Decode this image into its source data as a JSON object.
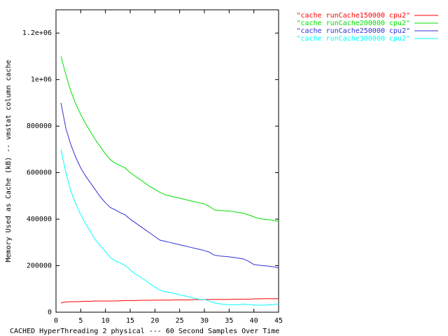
{
  "chart_data": {
    "type": "line",
    "ylabel": "Memory Used as Cache (kB) -- vmstat column cache",
    "xlabel": "CACHED HyperThreading 2 physical --- 60 Second Samples Over Time",
    "x": [
      1,
      2,
      3,
      4,
      5,
      6,
      7,
      8,
      9,
      10,
      11,
      12,
      13,
      14,
      15,
      16,
      17,
      18,
      19,
      20,
      21,
      22,
      23,
      24,
      25,
      26,
      27,
      28,
      29,
      30,
      31,
      32,
      33,
      34,
      35,
      36,
      37,
      38,
      39,
      40,
      41,
      42,
      43,
      44,
      45
    ],
    "series": [
      {
        "name": "\"cache runCache150000 cpu2\"",
        "color": "#ff0000",
        "values": [
          40000,
          44000,
          45000,
          45000,
          46000,
          47000,
          47000,
          48000,
          48000,
          48000,
          48000,
          48000,
          49000,
          50000,
          50000,
          50000,
          51000,
          51000,
          51000,
          52000,
          52000,
          52000,
          52000,
          53000,
          53000,
          53000,
          53000,
          54000,
          54000,
          54000,
          55000,
          55000,
          55000,
          55000,
          55000,
          56000,
          56000,
          56000,
          56000,
          57000,
          57000,
          58000,
          58000,
          58000,
          58000
        ]
      },
      {
        "name": "\"cache runCache200000 cpu2\"",
        "color": "#00e000",
        "values": [
          1100000,
          1020000,
          950000,
          895000,
          850000,
          810000,
          775000,
          740000,
          710000,
          680000,
          655000,
          640000,
          630000,
          620000,
          600000,
          585000,
          570000,
          555000,
          540000,
          528000,
          515000,
          505000,
          500000,
          495000,
          490000,
          485000,
          480000,
          475000,
          470000,
          465000,
          455000,
          440000,
          438000,
          436000,
          435000,
          432000,
          428000,
          425000,
          418000,
          410000,
          403000,
          400000,
          398000,
          395000,
          390000
        ]
      },
      {
        "name": "\"cache runCache250000 cpu2\"",
        "color": "#3030d8",
        "values": [
          900000,
          790000,
          720000,
          665000,
          620000,
          585000,
          555000,
          525000,
          495000,
          470000,
          450000,
          440000,
          428000,
          418000,
          400000,
          385000,
          370000,
          355000,
          340000,
          325000,
          310000,
          305000,
          300000,
          295000,
          290000,
          285000,
          280000,
          275000,
          270000,
          265000,
          258000,
          245000,
          242000,
          240000,
          238000,
          235000,
          232000,
          228000,
          218000,
          205000,
          202000,
          200000,
          198000,
          195000,
          190000
        ]
      },
      {
        "name": "\"cache runCache300000 cpu2\"",
        "color": "#00ffff",
        "values": [
          700000,
          600000,
          520000,
          465000,
          420000,
          380000,
          345000,
          310000,
          285000,
          260000,
          235000,
          220000,
          212000,
          200000,
          182000,
          165000,
          152000,
          138000,
          122000,
          108000,
          95000,
          88000,
          85000,
          80000,
          75000,
          70000,
          65000,
          60000,
          55000,
          55000,
          48000,
          40000,
          36000,
          34000,
          32000,
          32000,
          32000,
          35000,
          33000,
          30000,
          30000,
          30000,
          32000,
          33000,
          35000
        ]
      }
    ],
    "xlim": [
      0,
      45
    ],
    "xticks": [
      0,
      5,
      10,
      15,
      20,
      25,
      30,
      35,
      40,
      45
    ],
    "ylim": [
      0,
      1300000
    ],
    "yticks": [
      0,
      200000,
      400000,
      600000,
      800000,
      {
        "value": 1000000,
        "label": "1e+06"
      },
      {
        "value": 1200000,
        "label": "1.2e+06"
      }
    ],
    "legend": "top-right"
  }
}
